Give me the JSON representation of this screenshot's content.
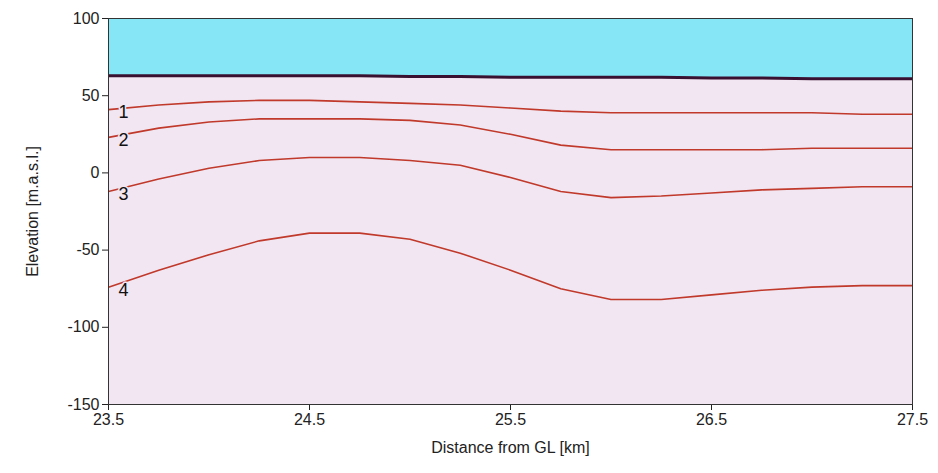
{
  "chart_data": {
    "type": "line",
    "x_label": "Distance from GL [km]",
    "y_label": "Elevation [m.a.s.l.]",
    "x": [
      23.5,
      23.75,
      24,
      24.25,
      24.5,
      24.75,
      25,
      25.25,
      25.5,
      25.75,
      26,
      26.25,
      26.5,
      26.75,
      27,
      27.25,
      27.5
    ],
    "series": [
      {
        "type": "area",
        "color": "#87e6f6",
        "values": [
          63,
          63,
          63,
          63,
          63,
          63,
          62.5,
          62.5,
          62,
          62,
          62,
          62,
          61.5,
          61.5,
          61,
          61,
          61
        ]
      },
      {
        "type": "line",
        "color": "#3a1030",
        "values": [
          63,
          63,
          63,
          63,
          63,
          63,
          62.5,
          62.5,
          62,
          62,
          62,
          62,
          61.5,
          61.5,
          61,
          61,
          61
        ]
      },
      {
        "name": "1",
        "type": "line",
        "color": "#c0392b",
        "values": [
          41,
          44,
          46,
          47,
          47,
          46,
          45,
          44,
          42,
          40,
          39,
          39,
          39,
          39,
          39,
          38,
          38
        ]
      },
      {
        "name": "2",
        "type": "line",
        "color": "#c0392b",
        "values": [
          23,
          29,
          33,
          35,
          35,
          35,
          34,
          31,
          25,
          18,
          15,
          15,
          15,
          15,
          16,
          16,
          16
        ]
      },
      {
        "name": "3",
        "type": "line",
        "color": "#c0392b",
        "values": [
          -12,
          -4,
          3,
          8,
          10,
          10,
          8,
          5,
          -3,
          -12,
          -16,
          -15,
          -13,
          -11,
          -10,
          -9,
          -9
        ]
      },
      {
        "name": "4",
        "type": "line",
        "color": "#c0392b",
        "values": [
          -74,
          -63,
          -53,
          -44,
          -39,
          -39,
          -43,
          -52,
          -63,
          -75,
          -82,
          -82,
          -79,
          -76,
          -74,
          -73,
          -73
        ]
      }
    ],
    "xlim": [
      23.5,
      27.5
    ],
    "xticks": [
      23.5,
      24.5,
      25.5,
      26.5,
      27.5
    ],
    "ylim": [
      -150,
      100
    ],
    "yticks": [
      -150,
      -100,
      -50,
      0,
      50,
      100
    ]
  }
}
